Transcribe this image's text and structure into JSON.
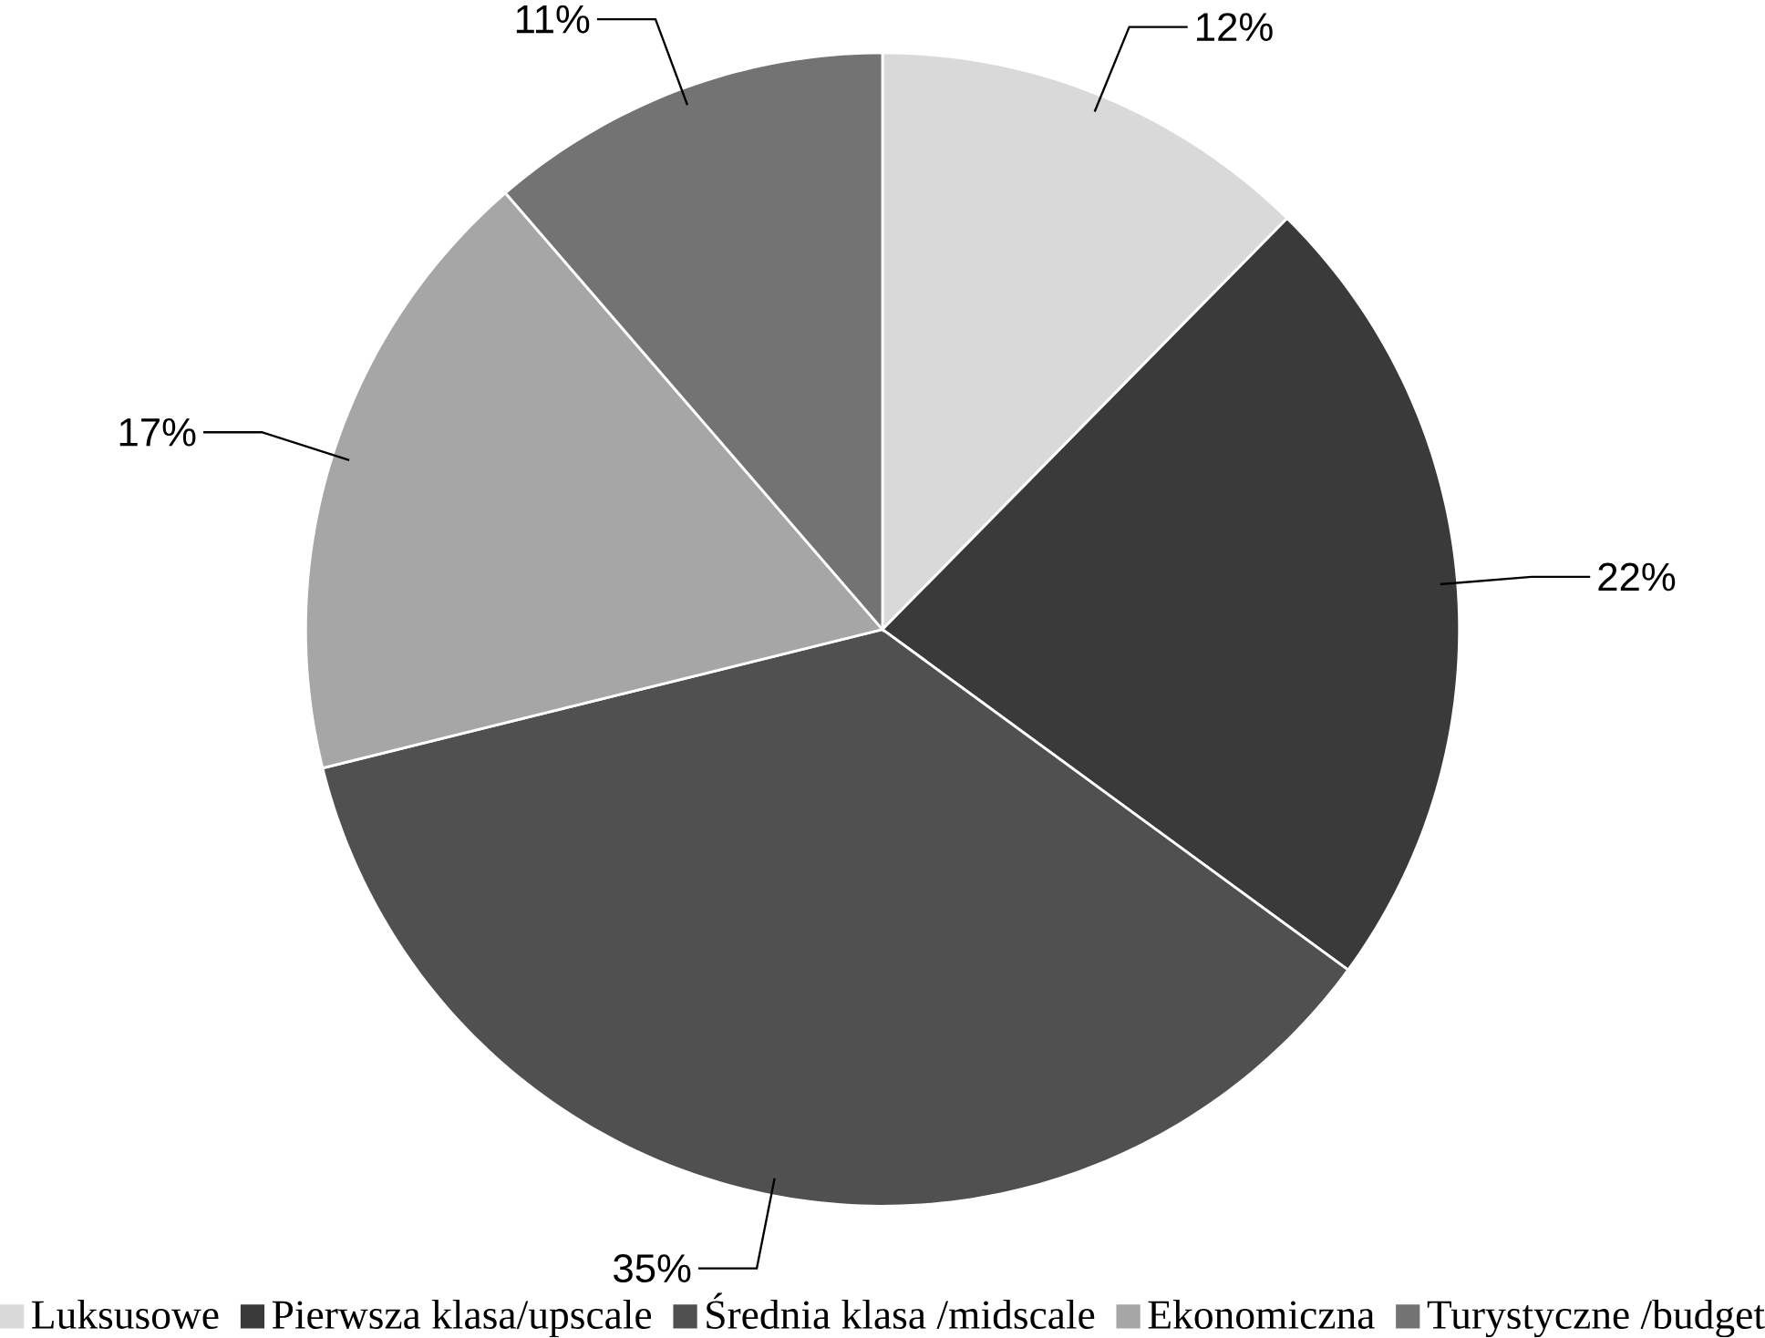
{
  "chart_data": {
    "type": "pie",
    "categories": [
      "Luksusowe",
      "Pierwsza  klasa/upscale",
      "Średnia klasa /midscale",
      "Ekonomiczna",
      "Turystyczne /budget"
    ],
    "values": [
      12,
      22,
      35,
      17,
      11
    ],
    "colors": [
      "#d9d9d9",
      "#3a3a3a",
      "#505050",
      "#a6a6a6",
      "#737373"
    ],
    "value_labels": [
      "12%",
      "22%",
      "35%",
      "17%",
      "11%"
    ],
    "legend": "bottom"
  }
}
